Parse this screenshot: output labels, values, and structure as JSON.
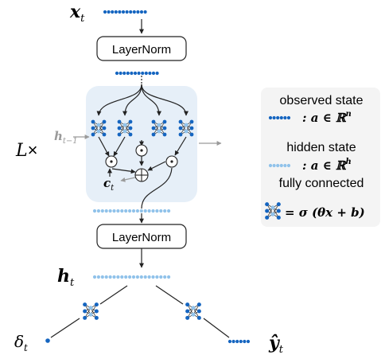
{
  "input": {
    "var": "x",
    "sub": "t"
  },
  "layernorm_label": "LayerNorm",
  "repeat": {
    "var": "L",
    "times": "×"
  },
  "hidden_prev": {
    "var": "h",
    "sub": "t−1"
  },
  "cell_state": {
    "var": "c",
    "sub": "t"
  },
  "ops": {
    "multiply": "⊙",
    "add": "⊕"
  },
  "output_hidden": {
    "var": "h",
    "sub": "t"
  },
  "output_delta": {
    "var": "δ",
    "sub": "t"
  },
  "output_y": {
    "var": "ŷ",
    "sub": "t"
  },
  "legend": {
    "observed_state": "observed state",
    "observed_formula": ": a ∈ ℝ",
    "observed_sup": "n",
    "hidden_state": "hidden state",
    "hidden_formula": ": a ∈ ℝ",
    "hidden_sup": "h",
    "fully_connected": "fully connected",
    "fc_formula": "= σ (θx + b)"
  },
  "colors": {
    "observed_dot": "#1565c0",
    "hidden_dot": "#90c2ea",
    "block_bg": "#e6eff8",
    "gray": "#9a9a9a",
    "legend_bg": "#f4f4f4"
  }
}
